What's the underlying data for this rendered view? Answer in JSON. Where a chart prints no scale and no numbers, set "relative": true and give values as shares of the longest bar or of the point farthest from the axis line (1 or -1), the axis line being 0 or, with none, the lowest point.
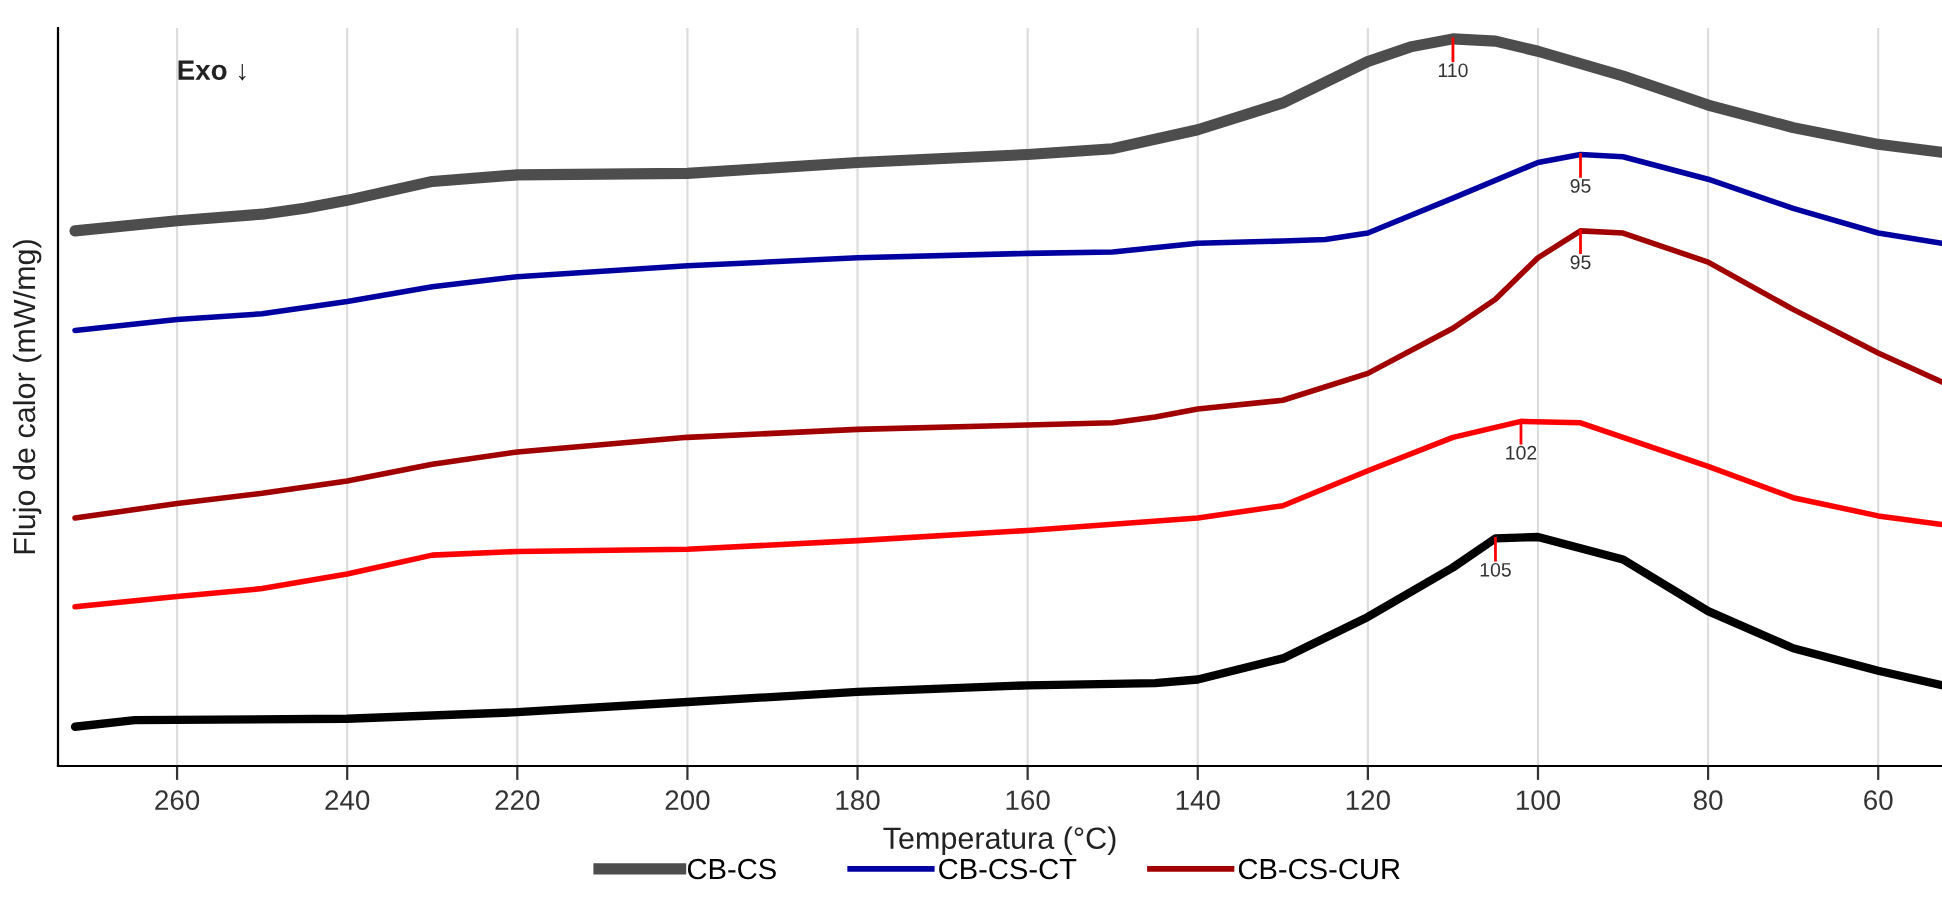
{
  "chart_data": {
    "type": "line",
    "relative": true,
    "xlabel": "Temperatura (°C)",
    "ylabel": "Flujo de calor (mW/mg)",
    "xlim": [
      274,
      52.5
    ],
    "xticks": [
      260,
      240,
      220,
      200,
      180,
      160,
      140,
      120,
      100,
      80,
      60
    ],
    "grid": "x",
    "legend": "bottom",
    "marker": "none",
    "line_style": "solid",
    "series": [
      {
        "name": "CB-CS",
        "color": "#4d4d4d",
        "x": [
          272,
          260,
          250,
          245,
          240,
          230,
          220,
          200,
          180,
          160,
          150,
          140,
          130,
          120,
          115,
          110,
          105,
          100,
          90,
          80,
          70,
          60,
          52.5
        ],
        "values": [
          0.736,
          0.75,
          0.759,
          0.767,
          0.778,
          0.804,
          0.813,
          0.815,
          0.83,
          0.841,
          0.849,
          0.875,
          0.912,
          0.969,
          0.989,
          1.0,
          0.997,
          0.983,
          0.949,
          0.909,
          0.878,
          0.855,
          0.844
        ]
      },
      {
        "name": "CB-CS-CT",
        "color": "#0000a0",
        "x": [
          272,
          260,
          250,
          240,
          230,
          220,
          200,
          180,
          160,
          150,
          140,
          130,
          125,
          120,
          110,
          100,
          95,
          90,
          80,
          70,
          60,
          52.5
        ],
        "values": [
          0.599,
          0.614,
          0.622,
          0.639,
          0.659,
          0.673,
          0.688,
          0.699,
          0.705,
          0.707,
          0.719,
          0.722,
          0.724,
          0.733,
          0.781,
          0.83,
          0.841,
          0.838,
          0.807,
          0.767,
          0.733,
          0.719
        ]
      },
      {
        "name": "CB-CS-CUR",
        "color": "#a00000",
        "x": [
          272,
          260,
          250,
          240,
          230,
          220,
          200,
          180,
          160,
          150,
          145,
          140,
          130,
          120,
          110,
          105,
          100,
          95,
          90,
          80,
          70,
          60,
          52.5
        ],
        "values": [
          0.341,
          0.361,
          0.375,
          0.392,
          0.415,
          0.432,
          0.452,
          0.463,
          0.469,
          0.472,
          0.48,
          0.491,
          0.503,
          0.54,
          0.602,
          0.642,
          0.699,
          0.736,
          0.733,
          0.693,
          0.628,
          0.568,
          0.528
        ]
      },
      {
        "color": "#ff0000",
        "x": [
          272,
          260,
          250,
          240,
          230,
          220,
          200,
          180,
          160,
          140,
          130,
          120,
          110,
          102,
          95,
          80,
          70,
          60,
          52.5
        ],
        "values": [
          0.219,
          0.233,
          0.244,
          0.264,
          0.29,
          0.295,
          0.298,
          0.31,
          0.324,
          0.341,
          0.358,
          0.406,
          0.452,
          0.474,
          0.472,
          0.412,
          0.369,
          0.344,
          0.332
        ]
      },
      {
        "color": "#000000",
        "x": [
          272,
          265,
          240,
          220,
          200,
          180,
          160,
          145,
          140,
          130,
          120,
          110,
          105,
          100,
          90,
          80,
          70,
          60,
          52.5
        ],
        "values": [
          0.054,
          0.063,
          0.065,
          0.074,
          0.088,
          0.102,
          0.111,
          0.114,
          0.119,
          0.148,
          0.205,
          0.273,
          0.313,
          0.315,
          0.284,
          0.213,
          0.162,
          0.131,
          0.111
        ]
      }
    ],
    "annotations": [
      "Exo ↓",
      {
        "text": "110",
        "x": 110,
        "y": 1.0
      },
      {
        "text": "95",
        "x": 95,
        "y": 0.841
      },
      {
        "text": "95",
        "x": 95,
        "y": 0.736
      },
      {
        "text": "102",
        "x": 102,
        "y": 0.474
      },
      {
        "text": "105",
        "x": 105,
        "y": 0.313
      }
    ]
  }
}
